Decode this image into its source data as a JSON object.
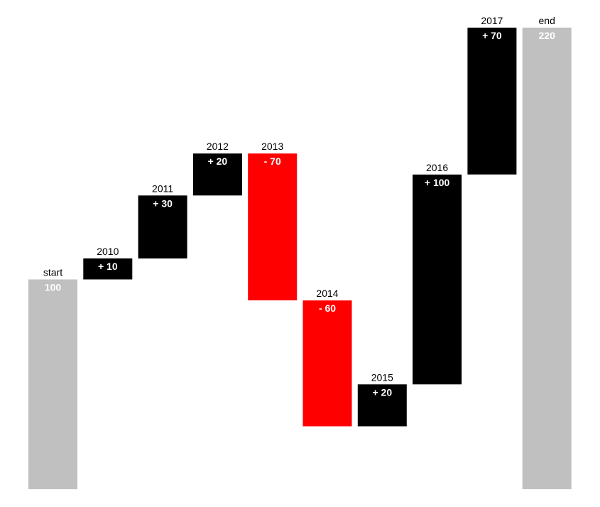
{
  "chart_data": {
    "type": "waterfall",
    "title": "",
    "xlabel": "",
    "ylabel": "",
    "ylim": [
      0,
      220
    ],
    "grid": false,
    "legend": "none",
    "bars": [
      {
        "category": "start",
        "kind": "total",
        "value": 100,
        "label": "100"
      },
      {
        "category": "2010",
        "kind": "increase",
        "value": 10,
        "label": "+ 10"
      },
      {
        "category": "2011",
        "kind": "increase",
        "value": 30,
        "label": "+ 30"
      },
      {
        "category": "2012",
        "kind": "increase",
        "value": 20,
        "label": "+ 20"
      },
      {
        "category": "2013",
        "kind": "decrease",
        "value": -70,
        "label": "- 70"
      },
      {
        "category": "2014",
        "kind": "decrease",
        "value": -60,
        "label": "- 60"
      },
      {
        "category": "2015",
        "kind": "increase",
        "value": 20,
        "label": "+ 20"
      },
      {
        "category": "2016",
        "kind": "increase",
        "value": 100,
        "label": "+ 100"
      },
      {
        "category": "2017",
        "kind": "increase",
        "value": 70,
        "label": "+ 70"
      },
      {
        "category": "end",
        "kind": "total",
        "value": 220,
        "label": "220"
      }
    ],
    "colors": {
      "total": "#c0c0c0",
      "increase": "#000000",
      "decrease": "#ff0000"
    }
  }
}
